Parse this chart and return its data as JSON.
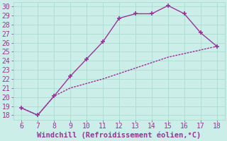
{
  "xlabel": "Windchill (Refroidissement éolien,°C)",
  "x_upper": [
    6,
    7,
    8,
    9,
    10,
    11,
    12,
    13,
    14,
    15,
    16,
    17,
    18
  ],
  "y_upper": [
    18.8,
    18.0,
    20.1,
    22.3,
    24.2,
    26.1,
    28.7,
    29.2,
    29.2,
    30.1,
    29.2,
    27.1,
    25.6
  ],
  "x_lower": [
    6,
    7,
    8,
    9,
    10,
    11,
    12,
    13,
    14,
    15,
    16,
    17,
    18
  ],
  "y_lower": [
    18.8,
    18.0,
    20.1,
    21.0,
    21.5,
    22.0,
    22.6,
    23.2,
    23.8,
    24.4,
    24.8,
    25.2,
    25.6
  ],
  "ylim": [
    17.5,
    30.5
  ],
  "xlim": [
    5.5,
    18.5
  ],
  "yticks": [
    18,
    19,
    20,
    21,
    22,
    23,
    24,
    25,
    26,
    27,
    28,
    29,
    30
  ],
  "xticks": [
    6,
    7,
    8,
    9,
    10,
    11,
    12,
    13,
    14,
    15,
    16,
    17,
    18
  ],
  "line_color": "#993399",
  "marker": "+",
  "marker_size": 5,
  "marker_lw": 1.2,
  "bg_color": "#cceee8",
  "grid_color": "#aaddcc",
  "tick_color": "#993399",
  "label_color": "#993399",
  "font_name": "monospace",
  "tick_fontsize": 7,
  "xlabel_fontsize": 7.5
}
